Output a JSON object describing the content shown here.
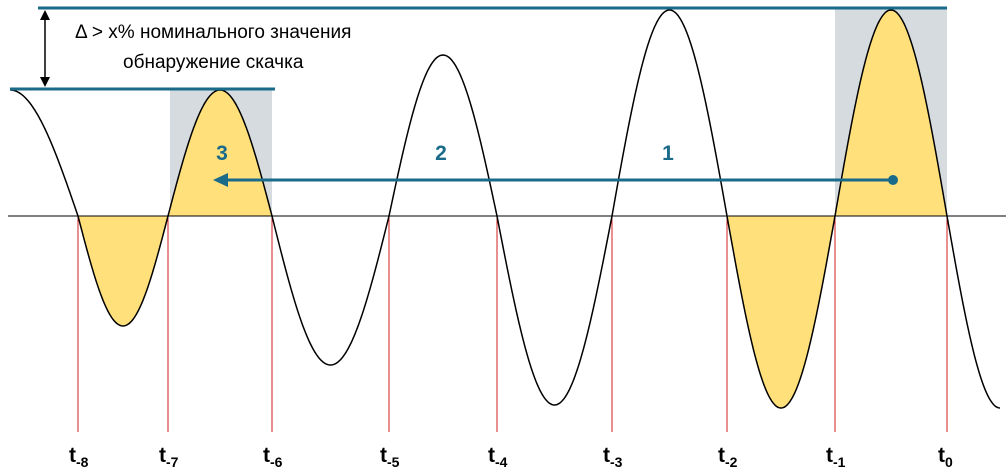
{
  "annotation": {
    "line1": "Δ >  x% номинального значения",
    "line2": "обнаружение скачка"
  },
  "periods": [
    "3",
    "2",
    "1"
  ],
  "time_labels": [
    {
      "base": "t",
      "sub": "-8"
    },
    {
      "base": "t",
      "sub": "-7"
    },
    {
      "base": "t",
      "sub": "-6"
    },
    {
      "base": "t",
      "sub": "-5"
    },
    {
      "base": "t",
      "sub": "-4"
    },
    {
      "base": "t",
      "sub": "-3"
    },
    {
      "base": "t",
      "sub": "-2"
    },
    {
      "base": "t",
      "sub": "-1"
    },
    {
      "base": "t",
      "sub": "0"
    }
  ]
}
